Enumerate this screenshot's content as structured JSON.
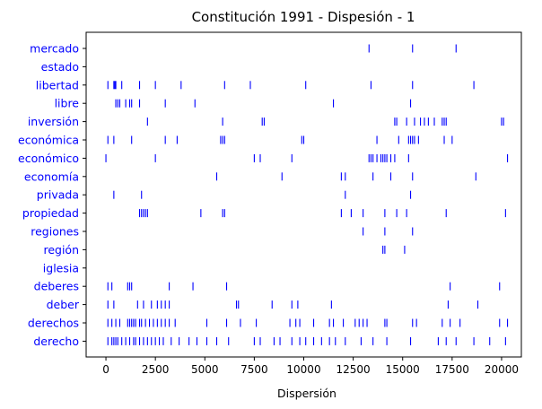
{
  "chart_data": {
    "type": "scatter",
    "title": "Constitución 1991 - Dispesión - 1",
    "xlabel": "Dispersión",
    "ylabel": "",
    "xlim": [
      -1000,
      21000
    ],
    "xticks": [
      0,
      2500,
      5000,
      7500,
      10000,
      12500,
      15000,
      17500,
      20000
    ],
    "grid": false,
    "marker": "vertical-line",
    "marker_color": "#0000ff",
    "categories": [
      "mercado",
      "estado",
      "libertad",
      "libre",
      "inversión",
      "económica",
      "económico",
      "economía",
      "privada",
      "propiedad",
      "regiones",
      "región",
      "iglesia",
      "deberes",
      "deber",
      "derechos",
      "derecho"
    ],
    "series": [
      {
        "name": "mercado",
        "x": [
          13300,
          15500,
          17700
        ]
      },
      {
        "name": "estado",
        "x": []
      },
      {
        "name": "libertad",
        "x": [
          100,
          400,
          450,
          500,
          800,
          1700,
          2500,
          3800,
          6000,
          7300,
          10100,
          13400,
          15500,
          18600
        ]
      },
      {
        "name": "libre",
        "x": [
          500,
          600,
          700,
          1000,
          1200,
          1300,
          1700,
          3000,
          4500,
          11500,
          15400
        ]
      },
      {
        "name": "inversión",
        "x": [
          2100,
          5900,
          7900,
          8000,
          14600,
          14700,
          15200,
          15600,
          15900,
          16100,
          16300,
          16600,
          17000,
          17100,
          17200,
          20000,
          20100
        ]
      },
      {
        "name": "económica",
        "x": [
          100,
          400,
          1300,
          3000,
          3600,
          5800,
          5900,
          6000,
          9900,
          10000,
          13700,
          14800,
          15300,
          15400,
          15500,
          15600,
          15800,
          17100,
          17500
        ]
      },
      {
        "name": "económico",
        "x": [
          0,
          2500,
          7500,
          7800,
          9400,
          13300,
          13400,
          13500,
          13700,
          13900,
          14000,
          14100,
          14200,
          14400,
          14600,
          15300,
          20300
        ]
      },
      {
        "name": "economía",
        "x": [
          5600,
          8900,
          11900,
          12100,
          13500,
          14400,
          15500,
          18700
        ]
      },
      {
        "name": "privada",
        "x": [
          400,
          1800,
          12100,
          15400
        ]
      },
      {
        "name": "propiedad",
        "x": [
          1700,
          1800,
          1900,
          2000,
          2100,
          4800,
          5900,
          6000,
          11900,
          12400,
          13000,
          14100,
          14700,
          15200,
          17200,
          20200
        ]
      },
      {
        "name": "regiones",
        "x": [
          13000,
          14100,
          15500
        ]
      },
      {
        "name": "región",
        "x": [
          14000,
          14100,
          15100
        ]
      },
      {
        "name": "iglesia",
        "x": []
      },
      {
        "name": "deberes",
        "x": [
          100,
          300,
          1100,
          1200,
          1300,
          3200,
          4400,
          6100,
          17400,
          19900
        ]
      },
      {
        "name": "deber",
        "x": [
          100,
          400,
          1600,
          1900,
          2300,
          2600,
          2800,
          3000,
          3200,
          6600,
          6700,
          8400,
          9400,
          9700,
          11400,
          17300,
          18800
        ]
      },
      {
        "name": "derechos",
        "x": [
          100,
          300,
          500,
          700,
          1100,
          1200,
          1300,
          1400,
          1500,
          1700,
          1800,
          2000,
          2200,
          2400,
          2600,
          2800,
          3000,
          3200,
          3500,
          5100,
          6100,
          6800,
          7600,
          9300,
          9600,
          9800,
          10500,
          11300,
          11500,
          12000,
          12600,
          12800,
          13000,
          13200,
          14100,
          14200,
          15500,
          15700,
          17000,
          17400,
          17900,
          19900,
          20300
        ]
      },
      {
        "name": "derecho",
        "x": [
          100,
          300,
          400,
          500,
          600,
          800,
          1000,
          1200,
          1400,
          1500,
          1700,
          1900,
          2100,
          2300,
          2500,
          2700,
          2900,
          3300,
          3700,
          4200,
          4600,
          5100,
          5600,
          6200,
          7500,
          7800,
          8500,
          8800,
          9400,
          9800,
          10100,
          10500,
          10900,
          11300,
          11600,
          12100,
          12900,
          13500,
          14200,
          15400,
          16800,
          17200,
          17700,
          18600,
          19400,
          20200
        ]
      }
    ]
  }
}
